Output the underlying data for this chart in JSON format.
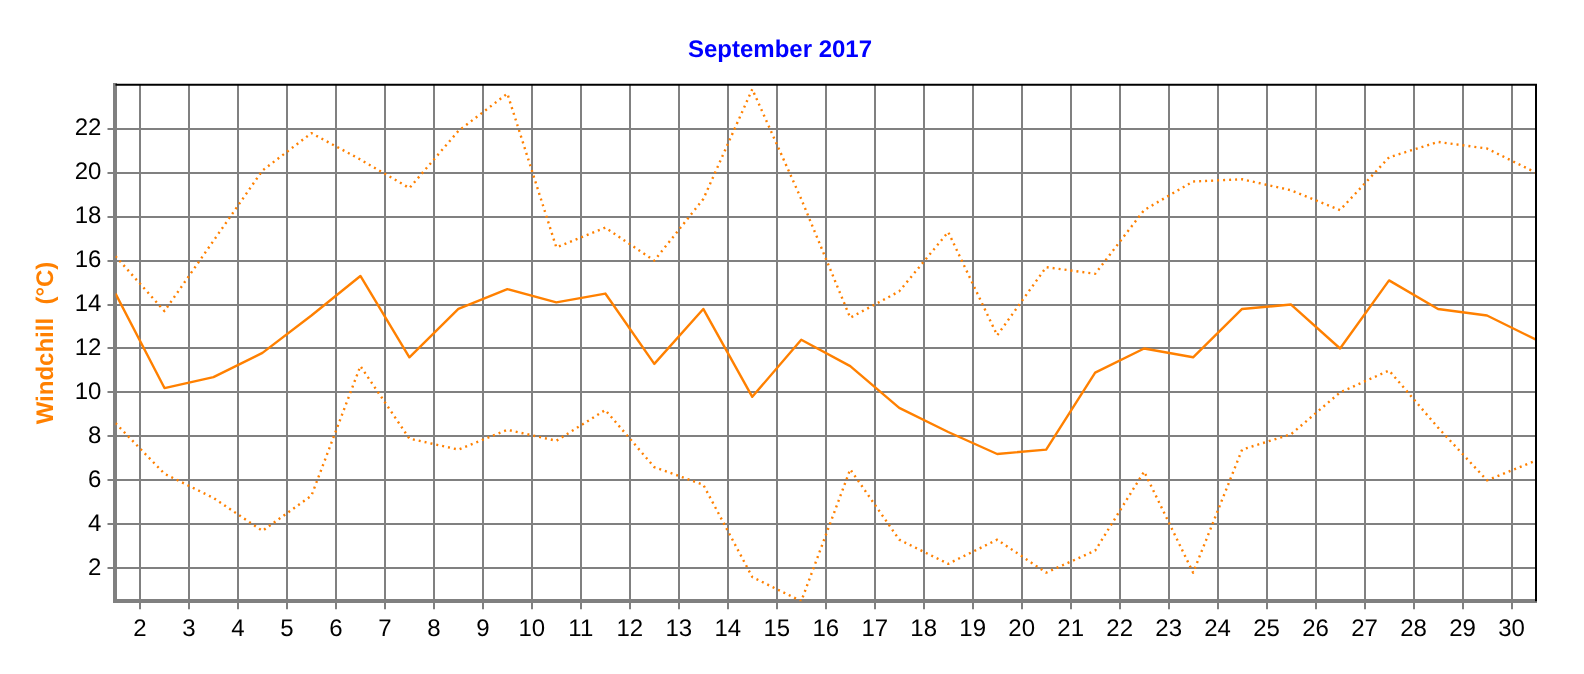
{
  "chart_data": {
    "type": "line",
    "title": "September 2017",
    "ylabel": "Windchill  (°C)",
    "x": [
      1.5,
      2.5,
      3.5,
      4.5,
      5.5,
      6.5,
      7.5,
      8.5,
      9.5,
      10.5,
      11.5,
      12.5,
      13.5,
      14.5,
      15.5,
      16.5,
      17.5,
      18.5,
      19.5,
      20.5,
      21.5,
      22.5,
      23.5,
      24.5,
      25.5,
      26.5,
      27.5,
      28.5,
      29.5,
      30.5
    ],
    "series": [
      {
        "color": "#ff8000",
        "line_style": "dotted",
        "values": [
          16.2,
          13.7,
          16.9,
          20.1,
          21.8,
          20.6,
          19.3,
          21.9,
          23.6,
          16.6,
          17.5,
          16.0,
          18.8,
          23.8,
          18.8,
          13.4,
          14.6,
          17.3,
          12.6,
          15.7,
          15.4,
          18.3,
          19.6,
          19.7,
          19.2,
          18.3,
          20.7,
          21.4,
          21.1,
          20.0
        ]
      },
      {
        "color": "#ff8000",
        "line_style": "solid",
        "values": [
          14.5,
          10.2,
          10.7,
          11.8,
          13.5,
          15.3,
          11.6,
          13.8,
          14.7,
          14.1,
          14.5,
          11.3,
          13.8,
          9.8,
          12.4,
          11.2,
          9.3,
          8.2,
          7.2,
          7.4,
          10.9,
          12.0,
          11.6,
          13.8,
          14.0,
          12.0,
          15.1,
          13.8,
          13.5,
          12.4
        ]
      },
      {
        "color": "#ff8000",
        "line_style": "dotted",
        "values": [
          8.6,
          6.3,
          5.2,
          3.7,
          5.3,
          11.2,
          7.9,
          7.4,
          8.3,
          7.8,
          9.2,
          6.6,
          5.8,
          1.6,
          0.5,
          6.5,
          3.3,
          2.2,
          3.3,
          1.8,
          2.8,
          6.4,
          1.8,
          7.4,
          8.1,
          10.0,
          11.0,
          8.4,
          6.0,
          6.9
        ]
      }
    ],
    "xlim": [
      1.5,
      30.5
    ],
    "xticks": [
      2,
      3,
      4,
      5,
      6,
      7,
      8,
      9,
      10,
      11,
      12,
      13,
      14,
      15,
      16,
      17,
      18,
      19,
      20,
      21,
      22,
      23,
      24,
      25,
      26,
      27,
      28,
      29,
      30
    ],
    "ylim": [
      0.5,
      24
    ],
    "yticks": [
      2,
      4,
      6,
      8,
      10,
      12,
      14,
      16,
      18,
      20,
      22
    ],
    "grid": true,
    "marker": "none"
  }
}
